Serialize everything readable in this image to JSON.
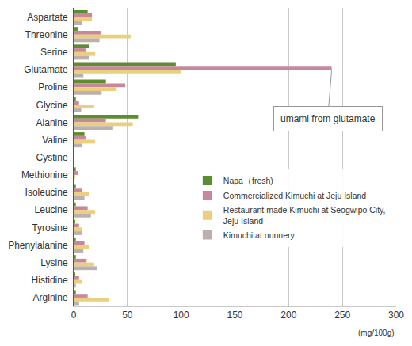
{
  "chart_data": {
    "type": "bar",
    "orientation": "horizontal",
    "categories": [
      "Aspartate",
      "Threonine",
      "Serine",
      "Glutamate",
      "Proline",
      "Glycine",
      "Alanine",
      "Valine",
      "Cystine",
      "Methionine",
      "Isoleucine",
      "Leucine",
      "Tyrosine",
      "Phenylalanine",
      "Lysine",
      "Histidine",
      "Arginine"
    ],
    "series": [
      {
        "name": "Napa（fresh)",
        "color": "#5e8c31",
        "values": [
          13,
          4,
          14,
          95,
          30,
          2,
          60,
          10,
          0,
          2,
          2,
          2,
          1,
          2,
          2,
          1,
          2
        ]
      },
      {
        "name": "Commercialized Kimuchi at Jeju Island",
        "color": "#c7899a",
        "values": [
          17,
          25,
          11,
          240,
          48,
          5,
          30,
          11,
          0,
          4,
          8,
          13,
          5,
          10,
          12,
          5,
          13
        ]
      },
      {
        "name": "Restaurant made Kimuchi at Seogwipo City, Jeju Island",
        "color": "#ead07e",
        "values": [
          17,
          53,
          20,
          100,
          40,
          19,
          55,
          20,
          0,
          1,
          14,
          20,
          8,
          14,
          19,
          8,
          33
        ]
      },
      {
        "name": "Kimuchi at nunnery",
        "color": "#bcb0ae",
        "values": [
          8,
          24,
          14,
          9,
          26,
          7,
          36,
          8,
          0,
          0,
          10,
          16,
          8,
          9,
          22,
          2,
          5
        ]
      }
    ],
    "xlim": [
      0,
      300
    ],
    "xticks": [
      0,
      50,
      100,
      150,
      200,
      250,
      300
    ],
    "x_label": "(mg/100g)",
    "grid": true,
    "legend": "lower right",
    "annotations": [
      {
        "text": "umami from glutamate",
        "category": "Glutamate"
      }
    ]
  }
}
